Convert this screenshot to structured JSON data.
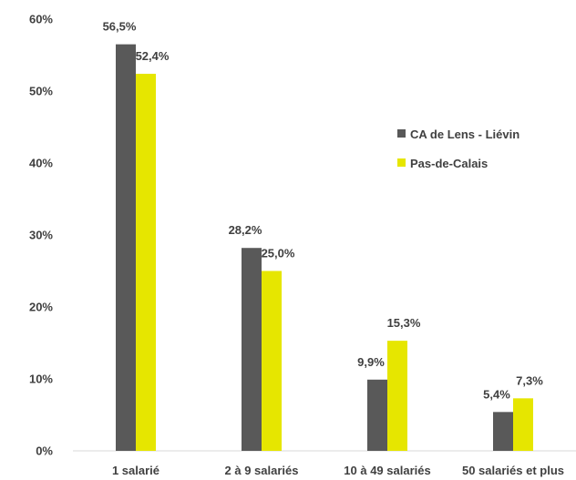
{
  "chart_data": {
    "type": "bar",
    "categories": [
      "1 salarié",
      "2 à 9 salariés",
      "10 à 49 salariés",
      "50 salariés et plus"
    ],
    "series": [
      {
        "name": "CA de Lens - Liévin",
        "color": "#595959",
        "values": [
          56.5,
          28.2,
          9.9,
          5.4
        ],
        "labels": [
          "56,5%",
          "28,2%",
          "9,9%",
          "5,4%"
        ]
      },
      {
        "name": "Pas-de-Calais",
        "color": "#e6e600",
        "values": [
          52.4,
          25.0,
          15.3,
          7.3
        ],
        "labels": [
          "52,4%",
          "25,0%",
          "15,3%",
          "7,3%"
        ]
      }
    ],
    "yticks": [
      0,
      10,
      20,
      30,
      40,
      50,
      60
    ],
    "ytick_labels": [
      "0%",
      "10%",
      "20%",
      "30%",
      "40%",
      "50%",
      "60%"
    ],
    "ylim": [
      0,
      60
    ],
    "grid": false,
    "legend_position": "right"
  }
}
